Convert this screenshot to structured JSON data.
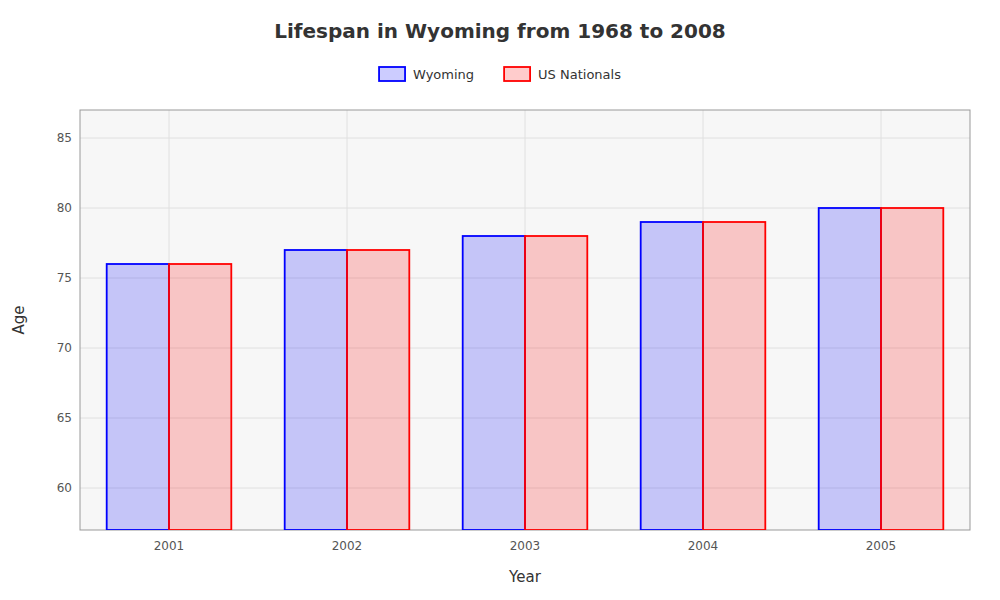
{
  "chart_data": {
    "type": "bar",
    "title": "Lifespan in Wyoming from 1968 to 2008",
    "x_label": "Year",
    "y_label": "Age",
    "categories": [
      "2001",
      "2002",
      "2003",
      "2004",
      "2005"
    ],
    "series": [
      {
        "name": "Wyoming",
        "color": "#0000ff",
        "values": [
          76,
          77,
          78,
          79,
          80
        ]
      },
      {
        "name": "US Nationals",
        "color": "#ff0000",
        "values": [
          76,
          77,
          78,
          79,
          80
        ]
      }
    ],
    "ylim": [
      57,
      87
    ],
    "yticks": [
      60,
      65,
      70,
      75,
      80,
      85
    ],
    "grid": true,
    "legend": "top"
  }
}
